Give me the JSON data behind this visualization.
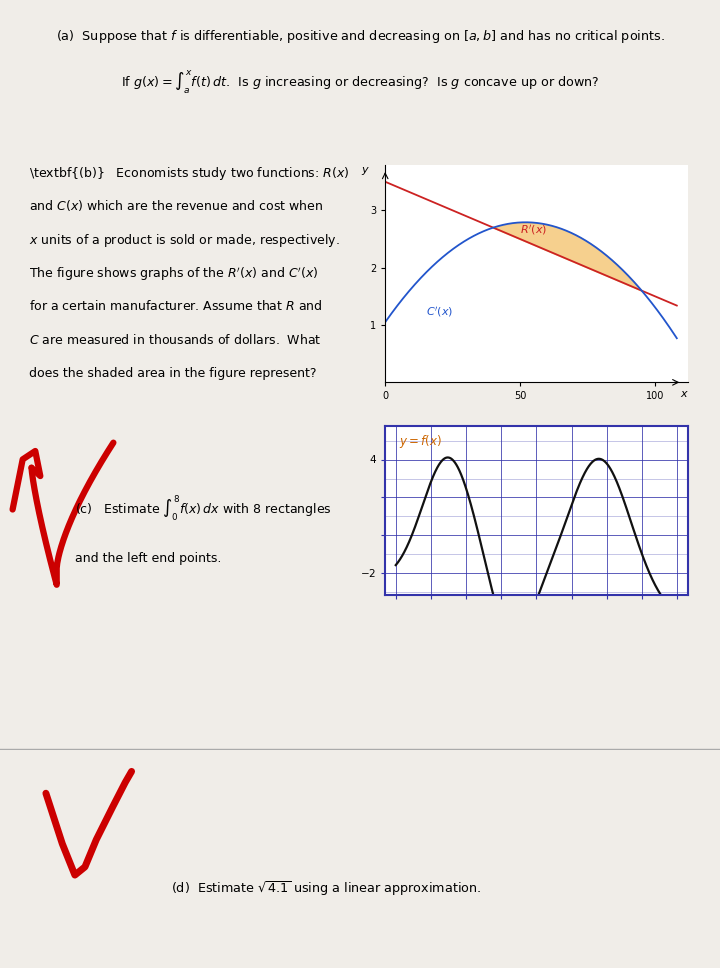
{
  "bg_color": "#f0ede8",
  "white": "#ffffff",
  "plot_b_xlim": [
    0,
    112
  ],
  "plot_b_ylim": [
    0,
    3.8
  ],
  "plot_b_xticks": [
    0,
    50,
    100
  ],
  "plot_b_yticks": [
    1,
    2,
    3
  ],
  "shade_color": "#f5c87a",
  "shade_alpha": 0.85,
  "Rprime_color": "#cc2222",
  "Cprime_color": "#2255cc",
  "plot_c_xlim": [
    -0.3,
    8.3
  ],
  "plot_c_ylim": [
    -3.2,
    5.8
  ],
  "grid_color": "#3333aa",
  "curve_color": "#111111",
  "label_color": "#cc6600",
  "red_color": "#cc0000"
}
